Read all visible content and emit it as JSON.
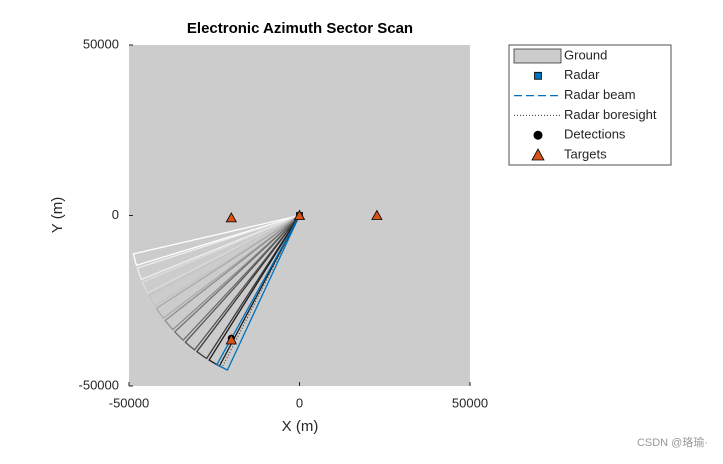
{
  "chart_data": {
    "type": "theater",
    "title": "Electronic Azimuth Sector Scan",
    "x_label": "X (m)",
    "y_label": "Y (m)",
    "xlim": [
      -50000,
      50000
    ],
    "ylim": [
      -50000,
      50000
    ],
    "xticks": [
      -50000,
      0,
      50000
    ],
    "yticks": [
      -50000,
      0,
      50000
    ],
    "background": "#cccccc",
    "beam_range": 50000,
    "beam_width": 4,
    "series": [
      {
        "name": "Ground",
        "color": "#cccccc"
      },
      {
        "name": "Radar",
        "color": "#0072bd",
        "x": [
          0
        ],
        "values": [
          0
        ]
      },
      {
        "name": "Radar beam",
        "color": "#0072bd",
        "values": [
          -165,
          -160,
          -155,
          -150,
          -145,
          -140,
          -135,
          -130,
          -125,
          -120,
          -117
        ],
        "colors": [
          "#ffffff",
          "#eeeeee",
          "#dddddd",
          "#c4c4c4",
          "#aaaaaa",
          "#8e8e8e",
          "#707070",
          "#555555",
          "#383838",
          "#1c1c1c",
          "#0072bd"
        ]
      },
      {
        "name": "Radar boresight",
        "color": "#333333",
        "values": [
          -117
        ]
      },
      {
        "name": "Detections",
        "color": "#000000",
        "x": [
          -20000
        ],
        "values": [
          -36000
        ]
      },
      {
        "name": "Targets",
        "color": "#d95319",
        "x": [
          -20000,
          0,
          22700,
          -20000
        ],
        "values": [
          -700,
          0,
          0,
          -36500
        ]
      }
    ],
    "watermark": "CSDN @珞瑜·"
  }
}
